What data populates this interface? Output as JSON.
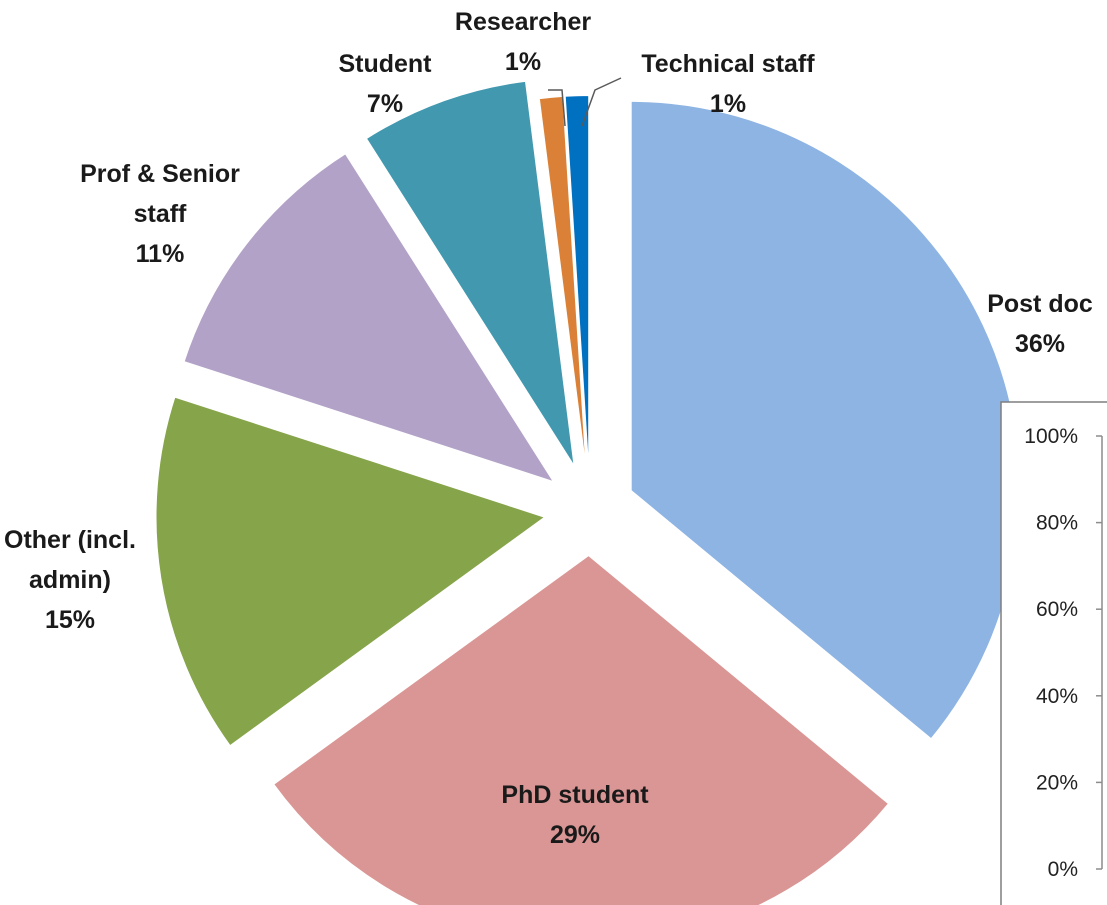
{
  "chart_data": [
    {
      "type": "pie",
      "slices": [
        {
          "name": "Post doc",
          "percent": 36,
          "label_lines": [
            "Post doc",
            "36%"
          ],
          "color": "#8EB4E3"
        },
        {
          "name": "PhD student",
          "percent": 29,
          "label_lines": [
            "PhD student",
            "29%"
          ],
          "color": "#D99694"
        },
        {
          "name": "Other (incl. admin)",
          "percent": 15,
          "label_lines": [
            "Other (incl.",
            "admin)",
            "15%"
          ],
          "color": "#86A44A"
        },
        {
          "name": "Prof & Senior staff",
          "percent": 11,
          "label_lines": [
            "Prof & Senior",
            "staff",
            "11%"
          ],
          "color": "#B2A2C7"
        },
        {
          "name": "Student",
          "percent": 7,
          "label_lines": [
            "Student",
            "7%"
          ],
          "color": "#4198AF"
        },
        {
          "name": "Researcher",
          "percent": 1,
          "label_lines": [
            "Researcher",
            "1%"
          ],
          "color": "#DA8137"
        },
        {
          "name": "Technical staff",
          "percent": 1,
          "label_lines": [
            "Technical staff",
            "1%"
          ],
          "color": "#0070C0"
        }
      ]
    },
    {
      "type": "bar",
      "y_ticks": [
        "100%",
        "80%",
        "60%",
        "40%",
        "20%",
        "0%"
      ],
      "ylim": [
        0,
        100
      ]
    }
  ]
}
